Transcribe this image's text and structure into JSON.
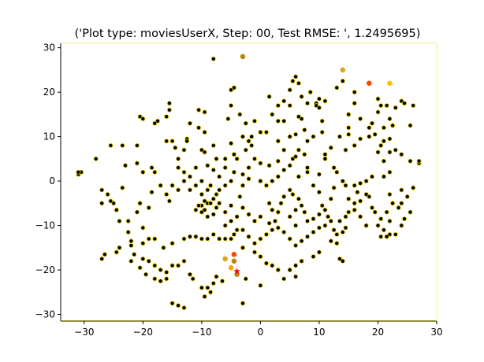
{
  "chart_data": {
    "type": "scatter",
    "title": "('Plot type: moviesUserX, Step: 00, Test RMSE: ', 1.2495695)",
    "xlabel": "",
    "ylabel": "",
    "xlim": [
      -34,
      30
    ],
    "ylim": [
      -31.5,
      31
    ],
    "grid": false,
    "xticks": [
      -30,
      -20,
      -10,
      0,
      10,
      20,
      30
    ],
    "yticks": [
      -30,
      -20,
      -10,
      0,
      10,
      20,
      30
    ],
    "colors": {
      "base": "#000000",
      "edge": "#e8d000",
      "highlight_orange": "#ff8c00",
      "highlight_gold": "#b8860b",
      "highlight_red": "#ff3300",
      "star": "#ff0000"
    },
    "highlights": [
      {
        "x": -3,
        "y": 28,
        "color": "#b8860b"
      },
      {
        "x": 14,
        "y": 25,
        "color": "#daa520"
      },
      {
        "x": 18.5,
        "y": 22,
        "color": "#ff4500"
      },
      {
        "x": 22,
        "y": 22,
        "color": "#ffc000"
      },
      {
        "x": -4.5,
        "y": -16.5,
        "color": "#ff4500"
      },
      {
        "x": -6,
        "y": -17.5,
        "color": "#daa520"
      },
      {
        "x": -4.5,
        "y": -18,
        "color": "#b8860b"
      },
      {
        "x": -5,
        "y": -19.5,
        "color": "#ffa500"
      },
      {
        "x": -4,
        "y": -21,
        "color": "#b8860b"
      }
    ],
    "star_point": {
      "x": -4,
      "y": -20.3,
      "color": "#ff0000"
    },
    "points": [
      [
        -8,
        27.5
      ],
      [
        -4.5,
        21
      ],
      [
        -15.5,
        17.5
      ],
      [
        -15.5,
        16
      ],
      [
        -16,
        14.5
      ],
      [
        -17.5,
        13.5
      ],
      [
        -20.5,
        14.5
      ],
      [
        -20,
        14
      ],
      [
        -18,
        13
      ],
      [
        -10.5,
        16
      ],
      [
        -9.5,
        15.5
      ],
      [
        -10.5,
        12
      ],
      [
        -9.5,
        11
      ],
      [
        -12,
        13
      ],
      [
        -12.5,
        9.5
      ],
      [
        -13,
        7
      ],
      [
        -12.5,
        9
      ],
      [
        -15,
        9
      ],
      [
        -16,
        9
      ],
      [
        -14.5,
        7.5
      ],
      [
        -10,
        7
      ],
      [
        -9.5,
        6.5
      ],
      [
        -8,
        8
      ],
      [
        -7.5,
        5
      ],
      [
        -4.5,
        21
      ],
      [
        -5,
        20.5
      ],
      [
        -5,
        17
      ],
      [
        -5.5,
        14
      ],
      [
        -3.5,
        15
      ],
      [
        -2.5,
        13
      ],
      [
        -1,
        13.5
      ],
      [
        -1.5,
        10
      ],
      [
        -2,
        9
      ],
      [
        -3,
        10
      ],
      [
        -5,
        8.5
      ],
      [
        -4.5,
        6
      ],
      [
        -2.5,
        7
      ],
      [
        -1.5,
        8
      ],
      [
        -4,
        5
      ],
      [
        -6,
        5
      ],
      [
        1.5,
        19
      ],
      [
        2,
        15
      ],
      [
        3,
        13.5
      ],
      [
        1,
        11
      ],
      [
        0,
        11
      ],
      [
        3,
        9
      ],
      [
        4,
        7
      ],
      [
        5.5,
        5
      ],
      [
        6.5,
        7
      ],
      [
        6,
        5.5
      ],
      [
        7.5,
        6
      ],
      [
        8,
        3
      ],
      [
        5.5,
        22.5
      ],
      [
        6,
        23.5
      ],
      [
        6.5,
        22
      ],
      [
        5,
        20.5
      ],
      [
        7,
        19
      ],
      [
        8.5,
        20
      ],
      [
        8,
        17.5
      ],
      [
        5,
        17
      ],
      [
        4,
        18
      ],
      [
        3,
        17
      ],
      [
        4,
        13.5
      ],
      [
        5,
        10
      ],
      [
        6,
        10.5
      ],
      [
        7.5,
        11.5
      ],
      [
        8,
        9
      ],
      [
        9,
        10
      ],
      [
        10.5,
        11
      ],
      [
        10.5,
        13.5
      ],
      [
        10,
        16.5
      ],
      [
        9.5,
        17.5
      ],
      [
        9.5,
        17
      ],
      [
        10,
        18.5
      ],
      [
        7,
        14
      ],
      [
        6.5,
        14.5
      ],
      [
        11,
        18
      ],
      [
        13,
        21
      ],
      [
        14,
        22.5
      ],
      [
        16,
        20
      ],
      [
        16,
        17.5
      ],
      [
        15,
        15
      ],
      [
        17,
        14
      ],
      [
        15,
        12
      ],
      [
        13.5,
        10
      ],
      [
        15,
        10.5
      ],
      [
        17,
        9.5
      ],
      [
        18.5,
        10
      ],
      [
        18.5,
        12
      ],
      [
        19,
        13
      ],
      [
        16,
        8
      ],
      [
        14.5,
        7
      ],
      [
        12,
        7.5
      ],
      [
        11,
        6
      ],
      [
        11,
        5
      ],
      [
        12.5,
        3
      ],
      [
        13,
        2
      ],
      [
        10,
        1.5
      ],
      [
        8,
        2
      ],
      [
        6.5,
        1
      ],
      [
        9,
        -1
      ],
      [
        10,
        -2.5
      ],
      [
        12.5,
        -1.5
      ],
      [
        14,
        0
      ],
      [
        14.5,
        -1
      ],
      [
        16,
        -1
      ],
      [
        17,
        -0.5
      ],
      [
        18,
        0
      ],
      [
        19,
        1
      ],
      [
        21,
        1
      ],
      [
        22,
        2
      ],
      [
        21,
        4.5
      ],
      [
        22,
        6.5
      ],
      [
        23,
        7
      ],
      [
        24,
        6
      ],
      [
        20,
        6.5
      ],
      [
        20.5,
        8
      ],
      [
        21,
        9
      ],
      [
        22,
        9.5
      ],
      [
        22.5,
        12.5
      ],
      [
        22,
        14
      ],
      [
        21,
        12
      ],
      [
        19.5,
        10.5
      ],
      [
        20,
        18.5
      ],
      [
        20.5,
        17
      ],
      [
        21.5,
        17
      ],
      [
        20,
        15.5
      ],
      [
        23,
        16.5
      ],
      [
        24,
        18
      ],
      [
        24.5,
        17.5
      ],
      [
        26,
        17
      ],
      [
        25.5,
        12.5
      ],
      [
        25.5,
        4.5
      ],
      [
        27,
        4
      ],
      [
        27,
        4.5
      ],
      [
        26,
        -1.5
      ],
      [
        25,
        -3.5
      ],
      [
        24,
        -5
      ],
      [
        23.5,
        -6
      ],
      [
        22.5,
        -5
      ],
      [
        21.5,
        -7
      ],
      [
        20.5,
        -8.5
      ],
      [
        19.5,
        -7
      ],
      [
        19,
        -6
      ],
      [
        18.5,
        -3.5
      ],
      [
        17,
        -4.5
      ],
      [
        16.5,
        -2.5
      ],
      [
        16,
        -6.5
      ],
      [
        15,
        -7
      ],
      [
        14.5,
        -8
      ],
      [
        13.5,
        -9
      ],
      [
        14.5,
        -10.5
      ],
      [
        14,
        -11.5
      ],
      [
        13,
        -12
      ],
      [
        12.5,
        -11
      ],
      [
        12,
        -9
      ],
      [
        11.5,
        -8
      ],
      [
        11,
        -6.5
      ],
      [
        10,
        -7.5
      ],
      [
        9,
        -8.5
      ],
      [
        8,
        -9
      ],
      [
        7.5,
        -7
      ],
      [
        7,
        -5.5
      ],
      [
        6,
        -6.5
      ],
      [
        6.5,
        -4
      ],
      [
        5.5,
        -3
      ],
      [
        5,
        -2
      ],
      [
        4,
        -3.5
      ],
      [
        3.5,
        -5
      ],
      [
        3,
        -7
      ],
      [
        2.5,
        -9
      ],
      [
        1.5,
        -9.5
      ],
      [
        0,
        -8
      ],
      [
        -1,
        -9
      ],
      [
        -2,
        -7.5
      ],
      [
        -3,
        -6
      ],
      [
        -3.5,
        -3.5
      ],
      [
        -3,
        -1
      ],
      [
        -2,
        0.5
      ],
      [
        0,
        0
      ],
      [
        1,
        -1
      ],
      [
        2,
        0
      ],
      [
        3,
        1
      ],
      [
        4,
        2.5
      ],
      [
        5,
        3.5
      ],
      [
        3,
        4.5
      ],
      [
        1.5,
        3.5
      ],
      [
        0,
        4
      ],
      [
        -1,
        5
      ],
      [
        -2,
        3
      ],
      [
        -3,
        1.5
      ],
      [
        -4.5,
        2
      ],
      [
        -5,
        0
      ],
      [
        -6,
        -1
      ],
      [
        -7,
        -2
      ],
      [
        -7.5,
        -3
      ],
      [
        -8,
        -4
      ],
      [
        -9,
        -5
      ],
      [
        -10,
        -5.5
      ],
      [
        -9.5,
        -6.5
      ],
      [
        -10,
        -7
      ],
      [
        -9,
        -8
      ],
      [
        -8,
        -7.5
      ],
      [
        -7.5,
        -6
      ],
      [
        -8.5,
        -5
      ],
      [
        -9.5,
        -4.5
      ],
      [
        -10.5,
        -5.5
      ],
      [
        -11,
        -6.5
      ],
      [
        -10,
        -3
      ],
      [
        -9,
        -2
      ],
      [
        -10,
        0
      ],
      [
        -11,
        -1
      ],
      [
        -12,
        1
      ],
      [
        -13,
        2
      ],
      [
        -14,
        3
      ],
      [
        -14,
        5
      ],
      [
        -11,
        3
      ],
      [
        -9,
        3.5
      ],
      [
        -8,
        2.5
      ],
      [
        -7,
        1
      ],
      [
        -6,
        3
      ],
      [
        -15.5,
        -4.5
      ],
      [
        -16,
        -3
      ],
      [
        -17,
        -1
      ],
      [
        -18,
        2
      ],
      [
        -18.5,
        3
      ],
      [
        -18.5,
        -2.5
      ],
      [
        -19,
        -6
      ],
      [
        -20.5,
        -5
      ],
      [
        -21,
        -7
      ],
      [
        -20,
        -10.5
      ],
      [
        -22.5,
        -9
      ],
      [
        -24,
        -9
      ],
      [
        -24.5,
        -6.5
      ],
      [
        -25,
        -5
      ],
      [
        -25.5,
        -4.5
      ],
      [
        -26,
        -3
      ],
      [
        -27,
        -2
      ],
      [
        -27,
        -5
      ],
      [
        -23.5,
        -1.5
      ],
      [
        -23,
        3.5
      ],
      [
        -21,
        4
      ],
      [
        -20,
        2
      ],
      [
        -21,
        8
      ],
      [
        -23.5,
        8
      ],
      [
        -25.5,
        8
      ],
      [
        -28,
        5
      ],
      [
        -30.5,
        2
      ],
      [
        -31,
        1.5
      ],
      [
        -31,
        2
      ],
      [
        -22.5,
        -11.5
      ],
      [
        -22,
        -13.5
      ],
      [
        -22,
        -14.5
      ],
      [
        -20,
        -14
      ],
      [
        -19,
        -13
      ],
      [
        -18,
        -13
      ],
      [
        -16.5,
        -15
      ],
      [
        -15,
        -14
      ],
      [
        -13,
        -13
      ],
      [
        -12,
        -12.5
      ],
      [
        -11,
        -12.5
      ],
      [
        -10,
        -13
      ],
      [
        -9,
        -13
      ],
      [
        -8,
        -12
      ],
      [
        -7,
        -13
      ],
      [
        -6,
        -13
      ],
      [
        -5,
        -13
      ],
      [
        -4.5,
        -12
      ],
      [
        -4,
        -11
      ],
      [
        -6,
        -10
      ],
      [
        -5,
        -9
      ],
      [
        -3,
        -11
      ],
      [
        -2,
        -12.5
      ],
      [
        -1,
        -14
      ],
      [
        0,
        -13
      ],
      [
        1,
        -12
      ],
      [
        2,
        -11
      ],
      [
        3,
        -10.5
      ],
      [
        4,
        -11.5
      ],
      [
        5,
        -13
      ],
      [
        6,
        -14.5
      ],
      [
        7,
        -13.5
      ],
      [
        8,
        -12.5
      ],
      [
        9,
        -11.5
      ],
      [
        10,
        -10.5
      ],
      [
        11,
        -10
      ],
      [
        12,
        -13.5
      ],
      [
        13,
        -14
      ],
      [
        14,
        -18
      ],
      [
        13.5,
        -17.5
      ],
      [
        10,
        -16
      ],
      [
        9,
        -17
      ],
      [
        7,
        -18
      ],
      [
        6,
        -19
      ],
      [
        5,
        -20
      ],
      [
        6,
        -21.5
      ],
      [
        4,
        -22
      ],
      [
        3,
        -20
      ],
      [
        2,
        -19
      ],
      [
        1,
        -18.5
      ],
      [
        0,
        -17
      ],
      [
        -1,
        -16
      ],
      [
        -3,
        -15
      ],
      [
        -2.5,
        -22
      ],
      [
        -3,
        -27.5
      ],
      [
        0,
        -23.5
      ],
      [
        -6.5,
        -22.5
      ],
      [
        -7.5,
        -21.5
      ],
      [
        -8,
        -23
      ],
      [
        -8.5,
        -25
      ],
      [
        -9.5,
        -26
      ],
      [
        -9,
        -24
      ],
      [
        -10,
        -24
      ],
      [
        -11.5,
        -22
      ],
      [
        -12,
        -21
      ],
      [
        -13,
        -18
      ],
      [
        -14,
        -19
      ],
      [
        -15,
        -19
      ],
      [
        -16,
        -20.5
      ],
      [
        -17,
        -20
      ],
      [
        -18,
        -19
      ],
      [
        -19,
        -18
      ],
      [
        -20,
        -17.5
      ],
      [
        -21.5,
        -16.5
      ],
      [
        -22,
        -18
      ],
      [
        -20.5,
        -19.5
      ],
      [
        -19.5,
        -21
      ],
      [
        -18,
        -22
      ],
      [
        -17,
        -22.5
      ],
      [
        -16,
        -22
      ],
      [
        -15,
        -27.5
      ],
      [
        -14,
        -28
      ],
      [
        -13,
        -28.5
      ],
      [
        -24,
        -15
      ],
      [
        -26.5,
        -16.5
      ],
      [
        -27,
        -17.5
      ],
      [
        -24.5,
        -16
      ],
      [
        16,
        -5
      ],
      [
        17,
        -8
      ],
      [
        18,
        -10
      ],
      [
        20,
        -10
      ],
      [
        21,
        -11
      ],
      [
        22,
        -12
      ],
      [
        22,
        -9
      ],
      [
        24.5,
        -8.5
      ],
      [
        25.5,
        -7
      ],
      [
        23,
        -12
      ],
      [
        21.5,
        -12.5
      ],
      [
        20.5,
        -12.5
      ],
      [
        24,
        -10
      ],
      [
        -15,
        -1
      ],
      [
        -14,
        -2
      ],
      [
        -13,
        0
      ],
      [
        -12,
        -2
      ],
      [
        -8.5,
        -1
      ],
      [
        -7,
        -5
      ],
      [
        -6,
        -7
      ],
      [
        -5,
        -5.5
      ],
      [
        -4,
        -8
      ],
      [
        1.5,
        -5
      ],
      [
        2,
        -6.5
      ],
      [
        6,
        -10
      ],
      [
        5,
        -8
      ],
      [
        10.5,
        -5.5
      ],
      [
        12,
        -4
      ],
      [
        15,
        -4
      ],
      [
        18,
        -3
      ],
      [
        22,
        -3
      ],
      [
        24,
        -2
      ]
    ]
  }
}
